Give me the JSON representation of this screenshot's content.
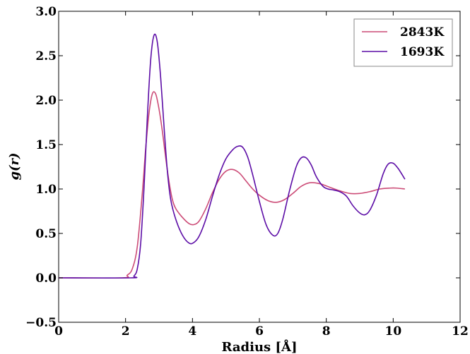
{
  "chart_data": {
    "type": "line",
    "xlabel": "Radius [Å]",
    "ylabel": "g(r)",
    "xlim": [
      0,
      12
    ],
    "ylim": [
      -0.5,
      3.0
    ],
    "xticks": [
      "0",
      "2",
      "4",
      "6",
      "8",
      "10",
      "12"
    ],
    "yticks": [
      "−0.5",
      "0.0",
      "0.5",
      "1.0",
      "1.5",
      "2.0",
      "2.5",
      "3.0"
    ],
    "grid": false,
    "legend_position": "top-right",
    "series": [
      {
        "name": "2843K",
        "color": "#cc4c77",
        "x": [
          0,
          1.9,
          2.05,
          2.2,
          2.35,
          2.5,
          2.6,
          2.7,
          2.8,
          2.9,
          3.0,
          3.1,
          3.2,
          3.3,
          3.4,
          3.5,
          3.7,
          3.9,
          4.05,
          4.2,
          4.4,
          4.6,
          4.8,
          5.0,
          5.2,
          5.4,
          5.6,
          5.8,
          6.0,
          6.25,
          6.5,
          6.75,
          7.0,
          7.25,
          7.5,
          7.8,
          8.1,
          8.4,
          8.7,
          9.0,
          9.3,
          9.6,
          9.9,
          10.1,
          10.35
        ],
        "y": [
          0,
          0,
          0.03,
          0.1,
          0.35,
          0.95,
          1.45,
          1.85,
          2.07,
          2.07,
          1.9,
          1.65,
          1.35,
          1.08,
          0.88,
          0.78,
          0.68,
          0.61,
          0.6,
          0.64,
          0.78,
          0.96,
          1.11,
          1.2,
          1.22,
          1.18,
          1.09,
          1.0,
          0.93,
          0.87,
          0.85,
          0.88,
          0.95,
          1.03,
          1.07,
          1.06,
          1.02,
          0.98,
          0.95,
          0.95,
          0.97,
          1.0,
          1.01,
          1.01,
          1.0
        ]
      },
      {
        "name": "1693K",
        "color": "#5c0da6",
        "x": [
          0,
          2.15,
          2.25,
          2.35,
          2.45,
          2.55,
          2.65,
          2.75,
          2.85,
          2.95,
          3.05,
          3.15,
          3.25,
          3.35,
          3.5,
          3.7,
          3.9,
          4.05,
          4.2,
          4.4,
          4.6,
          4.8,
          5.0,
          5.2,
          5.35,
          5.5,
          5.65,
          5.8,
          6.0,
          6.2,
          6.4,
          6.55,
          6.7,
          6.9,
          7.1,
          7.25,
          7.4,
          7.55,
          7.7,
          7.9,
          8.05,
          8.2,
          8.4,
          8.6,
          8.8,
          9.0,
          9.15,
          9.3,
          9.5,
          9.7,
          9.85,
          10.0,
          10.15,
          10.35
        ],
        "y": [
          0,
          0,
          0.02,
          0.1,
          0.38,
          1.0,
          1.8,
          2.45,
          2.73,
          2.65,
          2.25,
          1.7,
          1.2,
          0.88,
          0.66,
          0.48,
          0.39,
          0.4,
          0.47,
          0.66,
          0.92,
          1.16,
          1.34,
          1.44,
          1.48,
          1.47,
          1.36,
          1.16,
          0.86,
          0.6,
          0.48,
          0.5,
          0.66,
          0.98,
          1.25,
          1.35,
          1.35,
          1.27,
          1.14,
          1.03,
          1.0,
          0.99,
          0.97,
          0.92,
          0.81,
          0.73,
          0.71,
          0.76,
          0.93,
          1.17,
          1.28,
          1.29,
          1.23,
          1.11
        ]
      }
    ]
  }
}
